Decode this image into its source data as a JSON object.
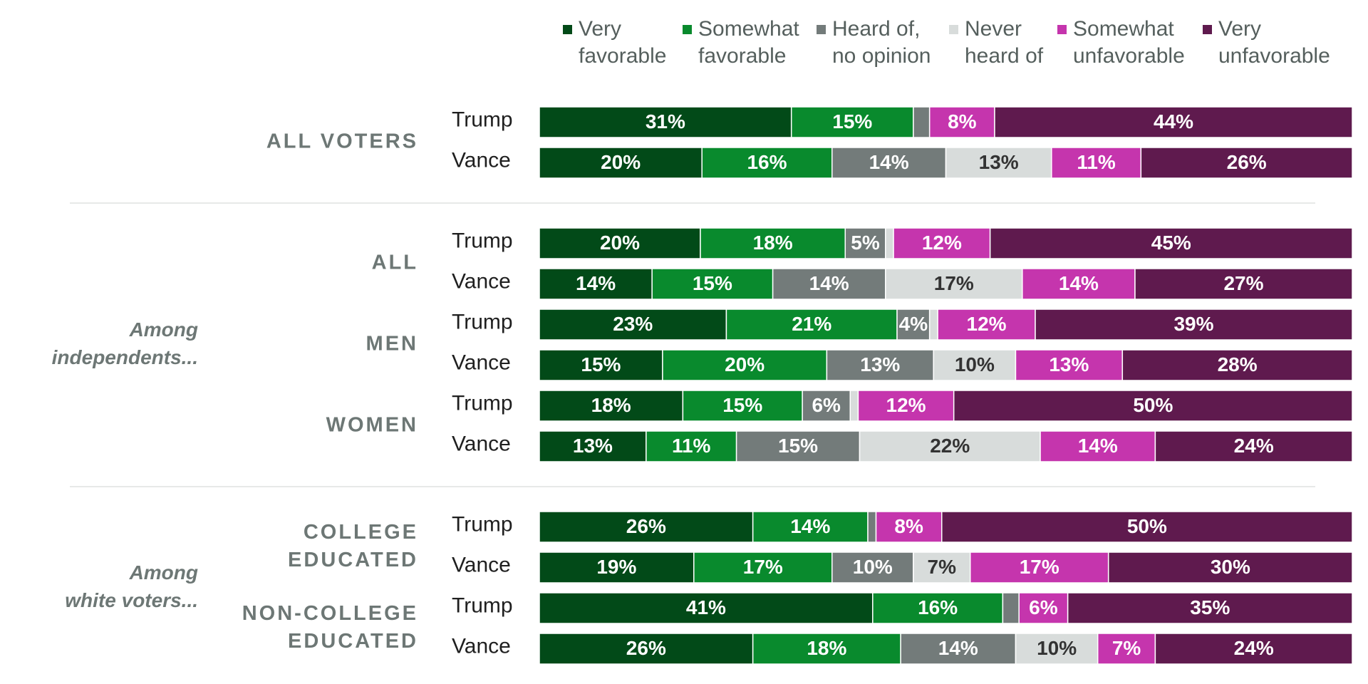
{
  "chart_data": {
    "type": "bar",
    "stacked": true,
    "orientation": "horizontal",
    "unit": "%",
    "legend_position": "top",
    "legend": [
      {
        "key": "very_favorable",
        "lines": [
          "Very",
          "favorable"
        ],
        "color": "#024a18",
        "label_color": "#ffffff"
      },
      {
        "key": "somewhat_favorable",
        "lines": [
          "Somewhat",
          "favorable"
        ],
        "color": "#098a2d",
        "label_color": "#ffffff"
      },
      {
        "key": "heard_no_opinion",
        "lines": [
          "Heard of,",
          "no opinion"
        ],
        "color": "#737b7a",
        "label_color": "#ffffff"
      },
      {
        "key": "never_heard",
        "lines": [
          "Never",
          "heard of"
        ],
        "color": "#d8dcdb",
        "label_color": "#333333"
      },
      {
        "key": "somewhat_unfavorable",
        "lines": [
          "Somewhat",
          "unfavorable"
        ],
        "color": "#c535ad",
        "label_color": "#ffffff"
      },
      {
        "key": "very_unfavorable",
        "lines": [
          "Very",
          "unfavorable"
        ],
        "color": "#5f1a4e",
        "label_color": "#ffffff"
      }
    ],
    "sections": [
      {
        "label": [],
        "groups": [
          {
            "label": [
              "ALL VOTERS"
            ],
            "rows": [
              {
                "label": "Trump",
                "values": [
                  31,
                  15,
                  2,
                  0,
                  8,
                  44
                ],
                "labels": [
                  "31%",
                  "15%",
                  "",
                  "",
                  "8%",
                  "44%"
                ]
              },
              {
                "label": "Vance",
                "values": [
                  20,
                  16,
                  14,
                  13,
                  11,
                  26
                ],
                "labels": [
                  "20%",
                  "16%",
                  "14%",
                  "13%",
                  "11%",
                  "26%"
                ]
              }
            ]
          }
        ]
      },
      {
        "label": [
          "Among",
          "independents..."
        ],
        "groups": [
          {
            "label": [
              "ALL"
            ],
            "rows": [
              {
                "label": "Trump",
                "values": [
                  20,
                  18,
                  5,
                  1,
                  12,
                  45
                ],
                "labels": [
                  "20%",
                  "18%",
                  "5%",
                  "",
                  "12%",
                  "45%"
                ]
              },
              {
                "label": "Vance",
                "values": [
                  14,
                  15,
                  14,
                  17,
                  14,
                  27
                ],
                "labels": [
                  "14%",
                  "15%",
                  "14%",
                  "17%",
                  "14%",
                  "27%"
                ]
              }
            ]
          },
          {
            "label": [
              "MEN"
            ],
            "rows": [
              {
                "label": "Trump",
                "values": [
                  23,
                  21,
                  4,
                  1,
                  12,
                  39
                ],
                "labels": [
                  "23%",
                  "21%",
                  "4%",
                  "",
                  "12%",
                  "39%"
                ]
              },
              {
                "label": "Vance",
                "values": [
                  15,
                  20,
                  13,
                  10,
                  13,
                  28
                ],
                "labels": [
                  "15%",
                  "20%",
                  "13%",
                  "10%",
                  "13%",
                  "28%"
                ]
              }
            ]
          },
          {
            "label": [
              "WOMEN"
            ],
            "rows": [
              {
                "label": "Trump",
                "values": [
                  18,
                  15,
                  6,
                  1,
                  12,
                  50
                ],
                "labels": [
                  "18%",
                  "15%",
                  "6%",
                  "",
                  "12%",
                  "50%"
                ]
              },
              {
                "label": "Vance",
                "values": [
                  13,
                  11,
                  15,
                  22,
                  14,
                  24
                ],
                "labels": [
                  "13%",
                  "11%",
                  "15%",
                  "22%",
                  "14%",
                  "24%"
                ]
              }
            ]
          }
        ]
      },
      {
        "label": [
          "Among",
          "white voters..."
        ],
        "groups": [
          {
            "label": [
              "COLLEGE",
              "EDUCATED"
            ],
            "rows": [
              {
                "label": "Trump",
                "values": [
                  26,
                  14,
                  1,
                  0,
                  8,
                  50
                ],
                "labels": [
                  "26%",
                  "14%",
                  "",
                  "",
                  "8%",
                  "50%"
                ]
              },
              {
                "label": "Vance",
                "values": [
                  19,
                  17,
                  10,
                  7,
                  17,
                  30
                ],
                "labels": [
                  "19%",
                  "17%",
                  "10%",
                  "7%",
                  "17%",
                  "30%"
                ]
              }
            ]
          },
          {
            "label": [
              "NON-COLLEGE",
              "EDUCATED"
            ],
            "rows": [
              {
                "label": "Trump",
                "values": [
                  41,
                  16,
                  2,
                  0,
                  6,
                  35
                ],
                "labels": [
                  "41%",
                  "16%",
                  "",
                  "",
                  "6%",
                  "35%"
                ]
              },
              {
                "label": "Vance",
                "values": [
                  26,
                  18,
                  14,
                  10,
                  7,
                  24
                ],
                "labels": [
                  "26%",
                  "18%",
                  "14%",
                  "10%",
                  "7%",
                  "24%"
                ]
              }
            ]
          }
        ]
      }
    ]
  }
}
